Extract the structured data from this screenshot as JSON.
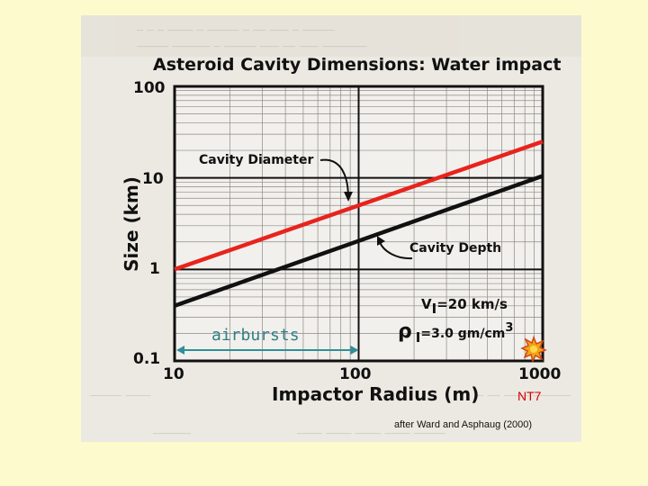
{
  "slide": {
    "background_color": "#fdfbcd",
    "label": "NT7",
    "credit": "after Ward and Asphaug (2000)"
  },
  "chart_data": {
    "type": "line",
    "title": "Asteroid Cavity Dimensions: Water impact",
    "xlabel": "Impactor Radius (m)",
    "ylabel": "Size (km)",
    "x_scale": "log",
    "y_scale": "log",
    "xlim": [
      10,
      1000
    ],
    "ylim": [
      0.1,
      100
    ],
    "x_ticks": [
      "10",
      "100",
      "1000"
    ],
    "y_ticks": [
      "0.1",
      "1",
      "10",
      "100"
    ],
    "grid": true,
    "series": [
      {
        "name": "Cavity Diameter",
        "color": "#e8231d",
        "x": [
          10,
          1000
        ],
        "y": [
          1.0,
          25
        ]
      },
      {
        "name": "Cavity Depth",
        "color": "#111111",
        "x": [
          10,
          1000
        ],
        "y": [
          0.4,
          10.5
        ]
      }
    ],
    "annotations": {
      "cavity_diameter": "Cavity Diameter",
      "cavity_depth": "Cavity Depth",
      "velocity": "V",
      "velocity_sub": "I",
      "velocity_value": "=20 km/s",
      "density": "ρ",
      "density_sub": "I",
      "density_value": "=3.0 gm/cm",
      "density_sup": "3",
      "airbursts": "airbursts",
      "airburst_range": [
        10,
        100
      ],
      "airburst_color": "#2f8f99"
    }
  }
}
